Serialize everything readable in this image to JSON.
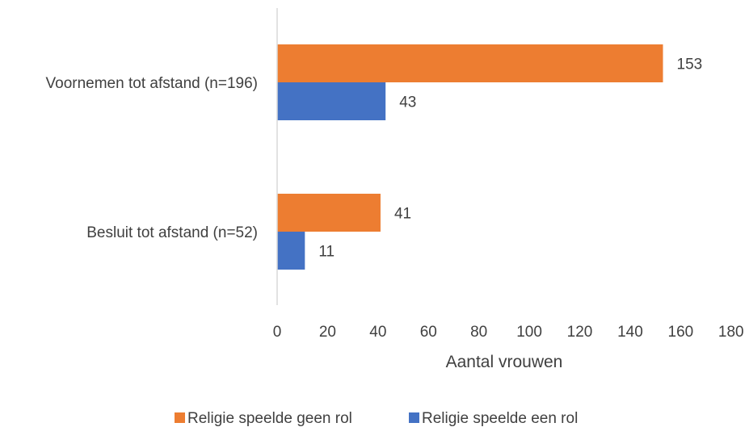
{
  "chart_data": {
    "type": "bar",
    "orientation": "horizontal",
    "title": "",
    "xlabel": "Aantal vrouwen",
    "ylabel": "",
    "categories": [
      "Voornemen tot afstand (n=196)",
      "Besluit tot afstand (n=52)"
    ],
    "series": [
      {
        "name": "Religie speelde geen rol",
        "color": "#ED7D31",
        "values": [
          153,
          41
        ]
      },
      {
        "name": "Religie speelde een rol",
        "color": "#4472C4",
        "values": [
          43,
          11
        ]
      }
    ],
    "xlim": [
      0,
      180
    ],
    "xticks": [
      0,
      20,
      40,
      60,
      80,
      100,
      120,
      140,
      160,
      180
    ],
    "grid": false,
    "legend": "bottom",
    "data_labels": true
  }
}
